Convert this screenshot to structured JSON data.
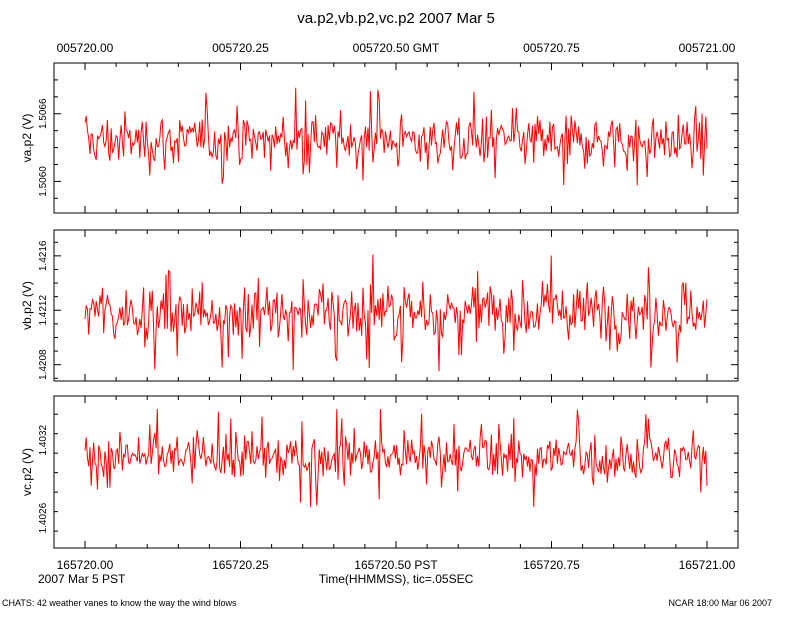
{
  "title": "va.p2,vb.p2,vc.p2 2007 Mar 5",
  "top_axis": {
    "ticks": [
      "005720.00",
      "005720.25",
      "005720.50 GMT",
      "005720.75",
      "005721.00"
    ]
  },
  "bottom_axis": {
    "ticks": [
      "165720.00",
      "165720.25",
      "165720.50 PST",
      "165720.75",
      "165721.00"
    ],
    "date_label": "2007 Mar  5 PST",
    "xlabel": "Time(HHMMSS), tic=.05SEC"
  },
  "footer": {
    "left": "CHATS: 42 weather vanes to know the way the wind blows",
    "right": "NCAR 18:00 Mar 06 2007"
  },
  "colors": {
    "series": "#ff0000",
    "axes": "#000000",
    "background": "#ffffff"
  },
  "chart_data": [
    {
      "type": "line",
      "title": "va.p2,vb.p2,vc.p2 2007 Mar 5",
      "series_name": "va.p2",
      "ylabel": "va.p2 (V)",
      "xlim": [
        0,
        1
      ],
      "xlabel": "Time(HHMMSS), tic=.05SEC",
      "ylim": [
        1.50572,
        1.50705
      ],
      "yticks": [
        1.506,
        1.5066
      ],
      "ytick_labels": [
        "1.5060",
        "1.5066"
      ],
      "samples": 500,
      "center": 1.50636,
      "typical_half_range": 0.00022,
      "min": 1.50583,
      "max": 1.50683
    },
    {
      "type": "line",
      "series_name": "vb.p2",
      "ylabel": "vb.p2 (V)",
      "xlim": [
        0,
        1
      ],
      "ylim": [
        1.42068,
        1.42179
      ],
      "yticks": [
        1.4208,
        1.4212,
        1.4216
      ],
      "ytick_labels": [
        "1.4208",
        "1.4212",
        "1.4216"
      ],
      "samples": 500,
      "center": 1.42119,
      "typical_half_range": 0.0002,
      "min": 1.42075,
      "max": 1.42167
    },
    {
      "type": "line",
      "series_name": "vc.p2",
      "ylabel": "vc.p2 (V)",
      "xlim": [
        0,
        1
      ],
      "ylim": [
        1.40237,
        1.40354
      ],
      "yticks": [
        1.4026,
        1.4032
      ],
      "ytick_labels": [
        "1.4026",
        "1.4032"
      ],
      "samples": 500,
      "center": 1.40307,
      "typical_half_range": 0.00018,
      "min": 1.40255,
      "max": 1.40344
    }
  ]
}
